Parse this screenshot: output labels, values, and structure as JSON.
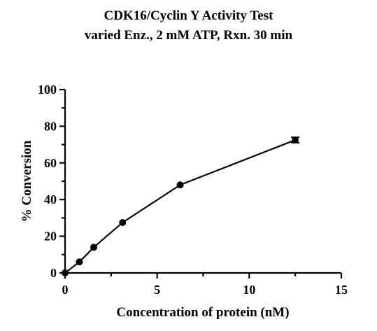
{
  "chart_data": {
    "type": "line",
    "title": "CDK16/Cyclin Y Activity Test",
    "subtitle": "varied Enz., 2 mM ATP, Rxn. 30 min",
    "xlabel": "Concentration of protein (nM)",
    "ylabel": "% Conversion",
    "xlim": [
      0,
      15
    ],
    "ylim": [
      0,
      100
    ],
    "xticks": [
      0,
      5,
      10,
      15
    ],
    "yticks": [
      0,
      20,
      40,
      60,
      80,
      100
    ],
    "grid": false,
    "series": [
      {
        "x": [
          0,
          0.78,
          1.56,
          3.125,
          6.25,
          12.5
        ],
        "y": [
          0,
          6,
          14,
          27.5,
          48,
          72.5
        ],
        "error": [
          0,
          0,
          0,
          0,
          0,
          1.5
        ],
        "color": "#000000",
        "marker": "circle"
      }
    ]
  }
}
